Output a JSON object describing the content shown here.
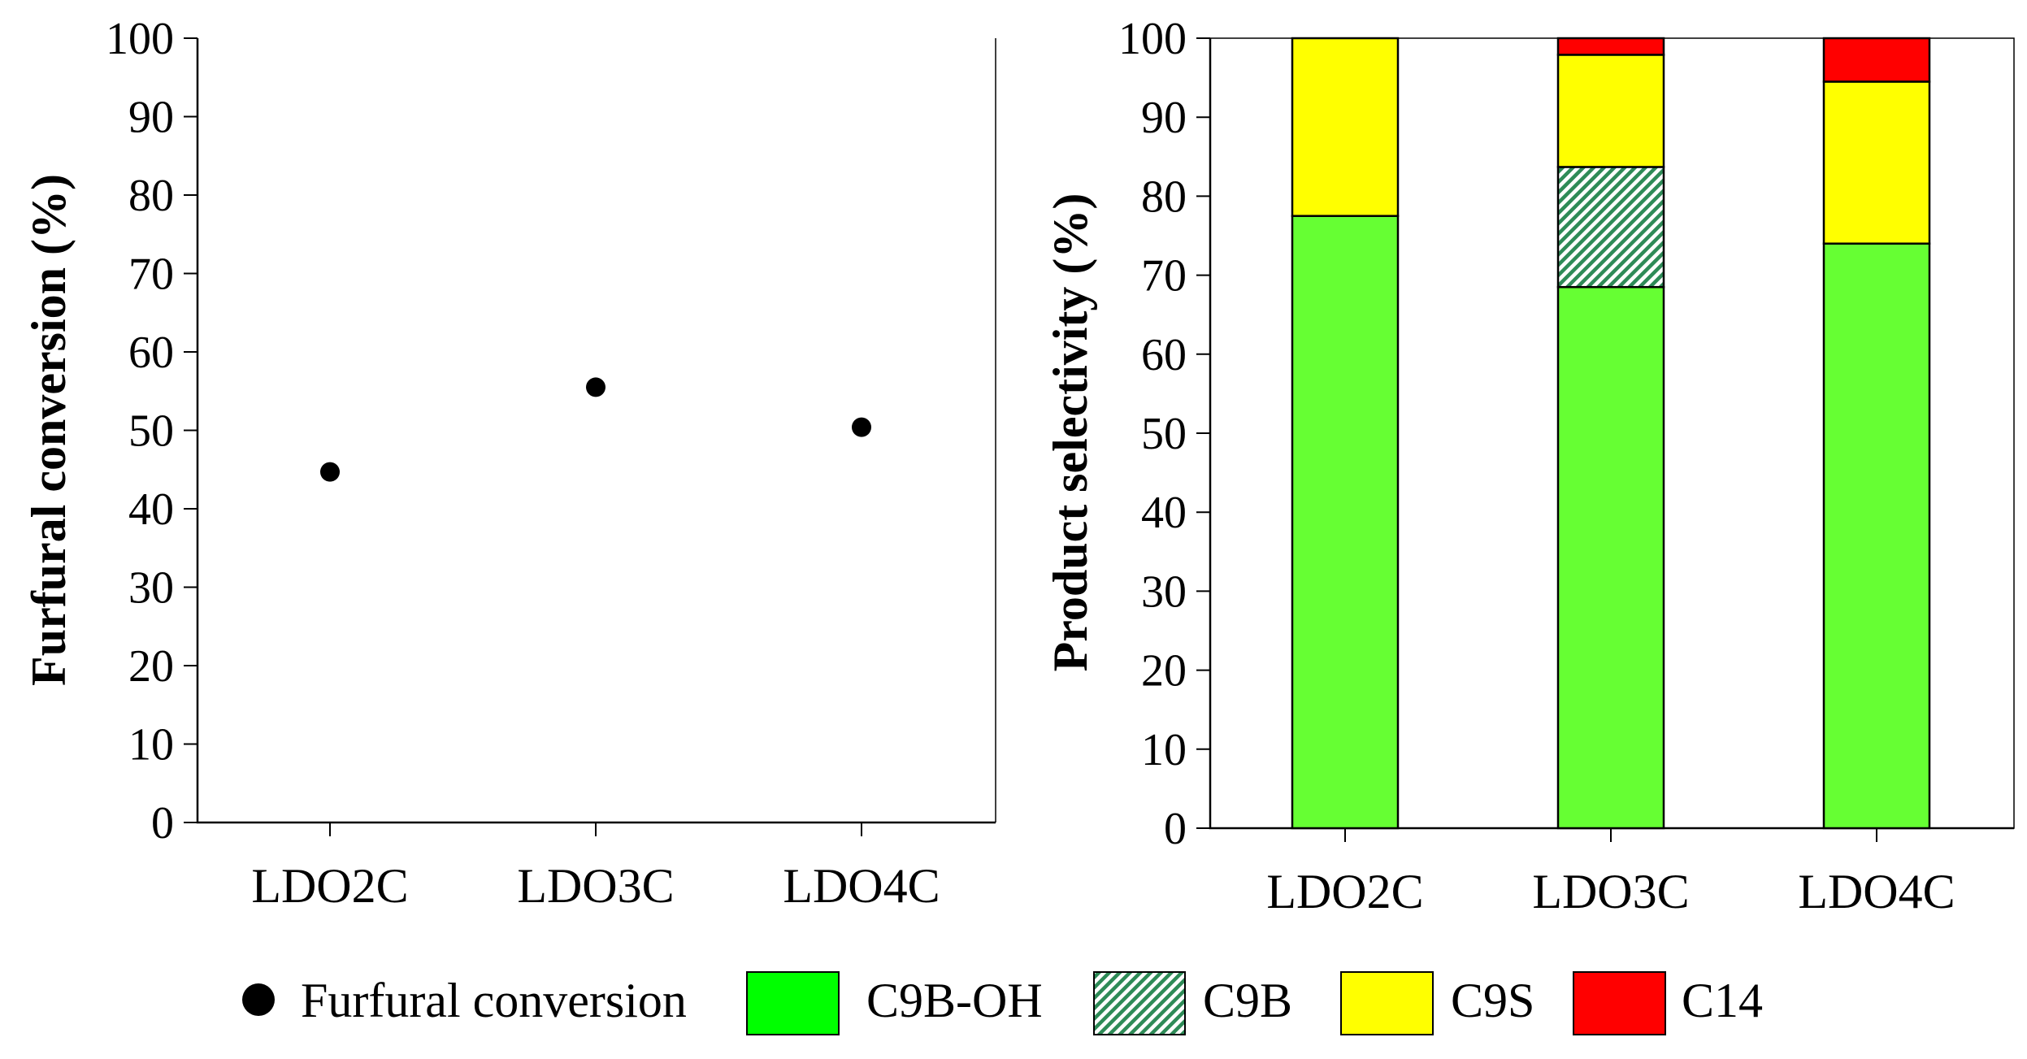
{
  "chart_data": [
    {
      "type": "scatter",
      "title": "",
      "xlabel": "",
      "ylabel": "Furfural conversion (%)",
      "categories": [
        "LDO2C",
        "LDO3C",
        "LDO4C"
      ],
      "ylim": [
        0,
        100
      ],
      "yticks": [
        "0",
        "10",
        "20",
        "30",
        "40",
        "50",
        "60",
        "70",
        "80",
        "90",
        "100"
      ],
      "series": [
        {
          "name": "Furfural conversion",
          "color": "#000000",
          "marker": "circle",
          "values": [
            44.7,
            55.5,
            50.4
          ]
        }
      ],
      "grid": false
    },
    {
      "type": "bar",
      "stacked": true,
      "title": "",
      "xlabel": "",
      "ylabel": "Product selectivity (%)",
      "categories": [
        "LDO2C",
        "LDO3C",
        "LDO4C"
      ],
      "ylim": [
        0,
        100
      ],
      "yticks": [
        "0",
        "10",
        "20",
        "30",
        "40",
        "50",
        "60",
        "70",
        "80",
        "90",
        "100"
      ],
      "series": [
        {
          "name": "C9B-OH",
          "color": "#66ff33",
          "pattern": "solid",
          "values": [
            77.5,
            68.5,
            74.0
          ]
        },
        {
          "name": "C9B",
          "color": "#2e8b57",
          "pattern": "hatch",
          "values": [
            0.0,
            15.2,
            0.0
          ]
        },
        {
          "name": "C9S",
          "color": "#ffff00",
          "pattern": "solid",
          "values": [
            22.5,
            14.2,
            20.5
          ]
        },
        {
          "name": "C14",
          "color": "#ff0000",
          "pattern": "solid",
          "values": [
            0.0,
            2.1,
            5.5
          ]
        }
      ],
      "grid": false
    }
  ],
  "legend": {
    "placement": "bottom",
    "items": [
      {
        "label": "Furfural conversion",
        "kind": "marker",
        "color": "#000000"
      },
      {
        "label": "C9B-OH",
        "kind": "swatch",
        "color": "#00ff00",
        "pattern": "solid"
      },
      {
        "label": "C9B",
        "kind": "swatch",
        "color": "#2e8b57",
        "pattern": "hatch"
      },
      {
        "label": "C9S",
        "kind": "swatch",
        "color": "#ffff00",
        "pattern": "solid"
      },
      {
        "label": "C14",
        "kind": "swatch",
        "color": "#ff0000",
        "pattern": "solid"
      }
    ]
  }
}
